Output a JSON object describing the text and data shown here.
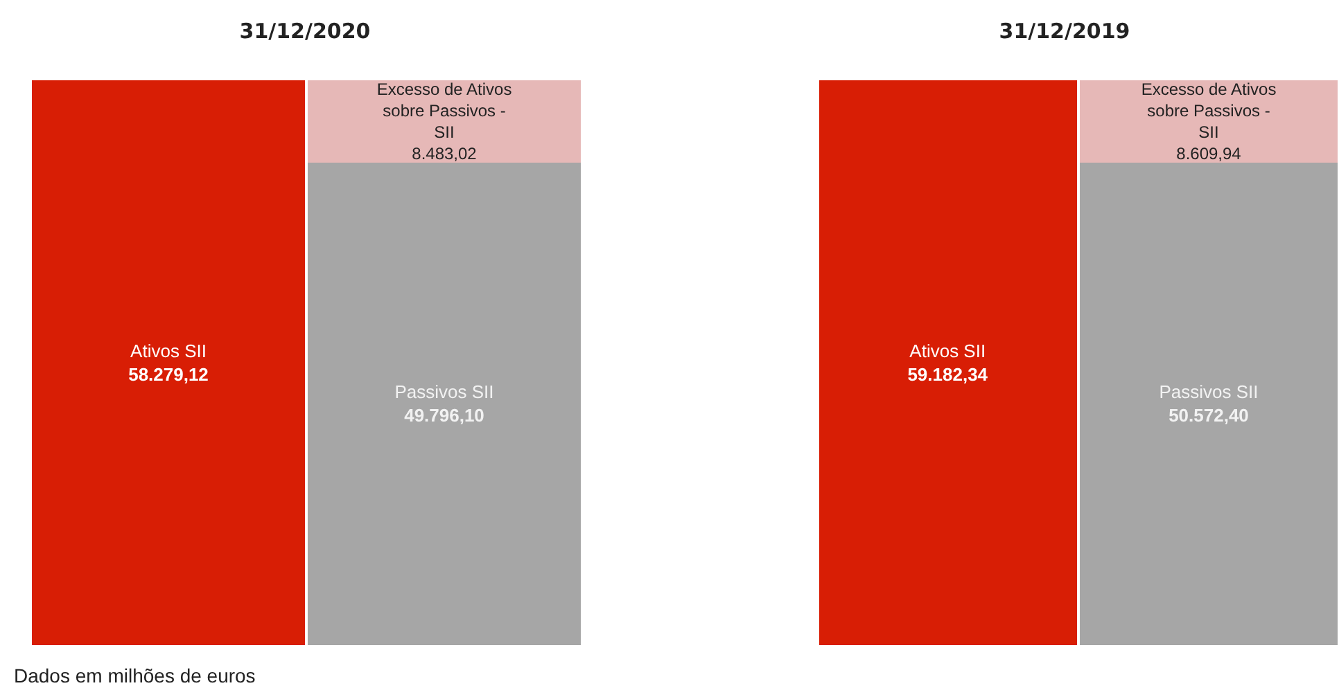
{
  "chart_data": [
    {
      "type": "bar",
      "title": "31/12/2020",
      "categories": [
        null,
        null
      ],
      "stacked": true,
      "data_labels": true,
      "annotations": [
        "Dados em milhões de euros"
      ],
      "series": [
        {
          "name": "Ativos SII",
          "color": "#d81e05",
          "values": [
            58279.12,
            null
          ],
          "value_labels": [
            "58.279,12",
            null
          ]
        },
        {
          "name": "Passivos SII",
          "color": "#a6a6a6",
          "values": [
            null,
            49796.1
          ],
          "value_labels": [
            null,
            "49.796,10"
          ]
        },
        {
          "name": "Excesso de Ativos sobre Passivos - SII",
          "color": "#e6b8b7",
          "values": [
            null,
            8483.02
          ],
          "value_labels": [
            null,
            "8.483,02"
          ]
        }
      ]
    },
    {
      "type": "bar",
      "title": "31/12/2019",
      "categories": [
        null,
        null
      ],
      "stacked": true,
      "data_labels": true,
      "series": [
        {
          "name": "Ativos SII",
          "color": "#d81e05",
          "values": [
            59182.34,
            null
          ],
          "value_labels": [
            "59.182,34",
            null
          ]
        },
        {
          "name": "Passivos SII",
          "color": "#a6a6a6",
          "values": [
            null,
            50572.4
          ],
          "value_labels": [
            null,
            "50.572,40"
          ]
        },
        {
          "name": "Excesso de Ativos sobre Passivos - SII",
          "color": "#e6b8b7",
          "values": [
            null,
            8609.94
          ],
          "value_labels": [
            null,
            "8.609,94"
          ]
        }
      ]
    }
  ]
}
